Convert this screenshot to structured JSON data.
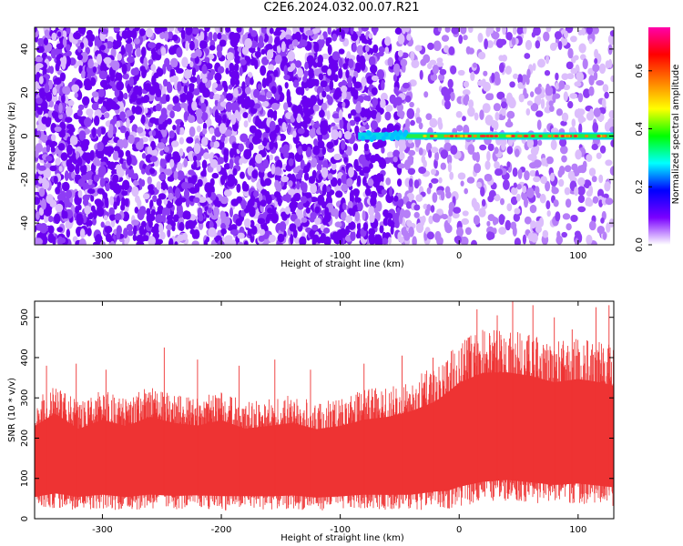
{
  "figure": {
    "title": "C2E6.2024.032.00.07.R21"
  },
  "chart_data": [
    {
      "type": "heatmap",
      "title": "",
      "xlabel": "Height of straight line (km)",
      "ylabel": "Frequency (Hz)",
      "xlim": [
        -357,
        130
      ],
      "ylim": [
        -50,
        50
      ],
      "xticks": [
        -300,
        -200,
        -100,
        0,
        100
      ],
      "yticks": [
        -40,
        -20,
        0,
        20,
        40
      ],
      "xtick_labels": [
        "-300",
        "-200",
        "-100",
        "0",
        "100"
      ],
      "ytick_labels": [
        "-40",
        "-20",
        "0",
        "20",
        "40"
      ],
      "colorbar": {
        "label": "Normalized spectral amplitude",
        "range": [
          0,
          0.75
        ],
        "ticks": [
          0.0,
          0.2,
          0.4,
          0.6
        ],
        "tick_labels": [
          "0.0",
          "0.2",
          "0.4",
          "0.6"
        ],
        "colors": [
          "#ffffff",
          "#7a00ff",
          "#0000ff",
          "#00ffff",
          "#00ff00",
          "#ffff00",
          "#ff7f00",
          "#ff0000",
          "#ff00aa"
        ]
      },
      "signal_band": {
        "frequency_hz": 0,
        "start_km": -85,
        "end_km": 130
      },
      "noise_region_end_km": -50,
      "grid": false
    },
    {
      "type": "line",
      "title": "",
      "xlabel": "Height of straight line (km)",
      "ylabel": "SNR (10 * v/v)",
      "xlim": [
        -357,
        130
      ],
      "ylim": [
        0,
        540
      ],
      "xticks": [
        -300,
        -200,
        -100,
        0,
        100
      ],
      "yticks": [
        0,
        100,
        200,
        300,
        400,
        500
      ],
      "xtick_labels": [
        "-300",
        "-200",
        "-100",
        "0",
        "100"
      ],
      "ytick_labels": [
        "0",
        "100",
        "200",
        "300",
        "400",
        "500"
      ],
      "color": "#ee3333",
      "series": [
        {
          "x": [
            -357,
            -340,
            -320,
            -300,
            -280,
            -260,
            -240,
            -220,
            -200,
            -180,
            -160,
            -140,
            -120,
            -100,
            -80,
            -60,
            -40,
            -20,
            -10,
            0,
            20,
            40,
            60,
            80,
            100,
            120,
            130
          ],
          "low": [
            20,
            25,
            22,
            24,
            20,
            23,
            22,
            25,
            20,
            24,
            22,
            23,
            20,
            22,
            24,
            22,
            20,
            25,
            22,
            30,
            40,
            45,
            40,
            35,
            38,
            32,
            30
          ],
          "high": [
            300,
            340,
            290,
            320,
            300,
            330,
            310,
            300,
            320,
            290,
            300,
            310,
            290,
            300,
            320,
            330,
            350,
            380,
            410,
            440,
            470,
            470,
            460,
            440,
            450,
            440,
            430
          ],
          "peaks": [
            {
              "x": -347,
              "y": 380
            },
            {
              "x": -322,
              "y": 385
            },
            {
              "x": -297,
              "y": 370
            },
            {
              "x": -248,
              "y": 425
            },
            {
              "x": -220,
              "y": 395
            },
            {
              "x": -185,
              "y": 380
            },
            {
              "x": -155,
              "y": 395
            },
            {
              "x": -125,
              "y": 370
            },
            {
              "x": -80,
              "y": 385
            },
            {
              "x": -48,
              "y": 405
            },
            {
              "x": -22,
              "y": 400
            },
            {
              "x": 15,
              "y": 520
            },
            {
              "x": 32,
              "y": 505
            },
            {
              "x": 45,
              "y": 545
            },
            {
              "x": 62,
              "y": 530
            },
            {
              "x": 80,
              "y": 500
            },
            {
              "x": 95,
              "y": 470
            },
            {
              "x": 115,
              "y": 525
            },
            {
              "x": 126,
              "y": 530
            }
          ]
        }
      ],
      "grid": false
    }
  ]
}
